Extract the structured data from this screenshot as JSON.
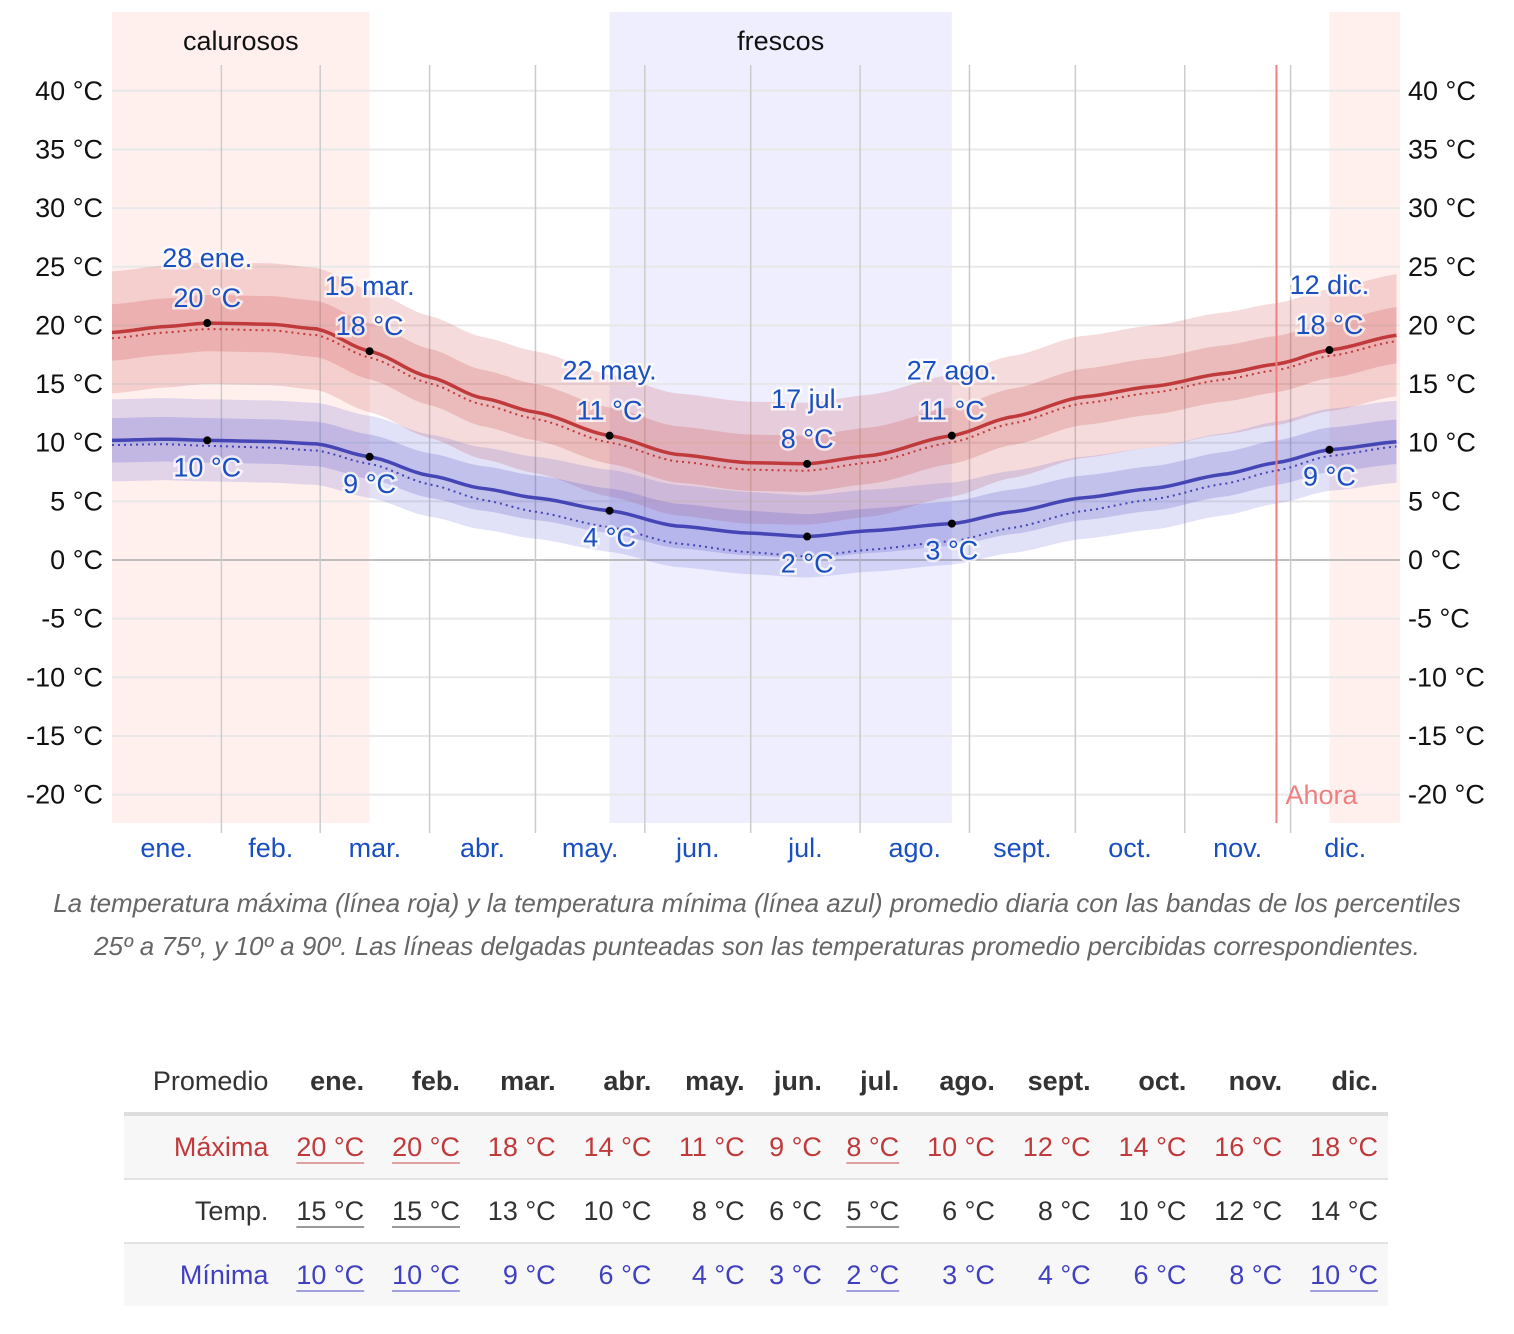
{
  "chart_data": {
    "type": "line",
    "ylim": [
      -22.5,
      45
    ],
    "yticks": [
      40,
      35,
      30,
      25,
      20,
      15,
      10,
      5,
      0,
      -5,
      -10,
      -15,
      -20
    ],
    "ytick_labels": [
      "40 °C",
      "35 °C",
      "30 °C",
      "25 °C",
      "20 °C",
      "15 °C",
      "10 °C",
      "5 °C",
      "0 °C",
      "-5 °C",
      "-10 °C",
      "-15 °C",
      "-20 °C"
    ],
    "months": [
      "ene.",
      "feb.",
      "mar.",
      "abr.",
      "may.",
      "jun.",
      "jul.",
      "ago.",
      "sept.",
      "oct.",
      "nov.",
      "dic."
    ],
    "month_days": [
      31,
      28,
      31,
      30,
      31,
      30,
      31,
      31,
      30,
      31,
      30,
      31
    ],
    "seasons": [
      {
        "label": "calurosos",
        "start_day": 0,
        "end_day": 73,
        "color": "#fff0ee"
      },
      {
        "label": "",
        "start_day": 345,
        "end_day": 365,
        "color": "#fff0ee"
      },
      {
        "label": "frescos",
        "start_day": 141,
        "end_day": 238,
        "color": "#eeeeff"
      }
    ],
    "now": {
      "label": "Ahora",
      "day": 330,
      "color": "#f08080"
    },
    "series": [
      {
        "name": "Máxima",
        "color": "#c0393b",
        "points": [
          [
            0,
            19.4
          ],
          [
            15,
            19.9
          ],
          [
            27,
            20.2
          ],
          [
            45,
            20.1
          ],
          [
            58,
            19.7
          ],
          [
            73,
            17.8
          ],
          [
            90,
            15.6
          ],
          [
            105,
            13.8
          ],
          [
            120,
            12.6
          ],
          [
            141,
            10.6
          ],
          [
            160,
            9
          ],
          [
            180,
            8.3
          ],
          [
            197,
            8.2
          ],
          [
            215,
            8.9
          ],
          [
            238,
            10.6
          ],
          [
            255,
            12.2
          ],
          [
            275,
            13.9
          ],
          [
            295,
            14.8
          ],
          [
            315,
            15.9
          ],
          [
            330,
            16.7
          ],
          [
            345,
            17.9
          ],
          [
            365,
            19.2
          ]
        ],
        "p25_75": 2.4,
        "p10_90": 5.2,
        "feels_offset": [
          [
            0,
            -0.5
          ],
          [
            180,
            -0.6
          ],
          [
            365,
            -0.5
          ]
        ]
      },
      {
        "name": "Mínima",
        "color": "#4545b5",
        "points": [
          [
            0,
            10.2
          ],
          [
            15,
            10.3
          ],
          [
            27,
            10.2
          ],
          [
            45,
            10.1
          ],
          [
            58,
            9.9
          ],
          [
            73,
            8.8
          ],
          [
            90,
            7.2
          ],
          [
            105,
            6.1
          ],
          [
            120,
            5.3
          ],
          [
            141,
            4.2
          ],
          [
            160,
            2.9
          ],
          [
            180,
            2.3
          ],
          [
            197,
            2.0
          ],
          [
            215,
            2.5
          ],
          [
            238,
            3.1
          ],
          [
            255,
            4.1
          ],
          [
            275,
            5.3
          ],
          [
            295,
            6.1
          ],
          [
            315,
            7.3
          ],
          [
            330,
            8.3
          ],
          [
            345,
            9.4
          ],
          [
            365,
            10.1
          ]
        ],
        "p25_75": 1.9,
        "p10_90": 3.5,
        "feels_offset": [
          [
            0,
            -0.4
          ],
          [
            73,
            -0.6
          ],
          [
            141,
            -1.4
          ],
          [
            197,
            -1.7
          ],
          [
            238,
            -1.5
          ],
          [
            300,
            -0.9
          ],
          [
            365,
            -0.4
          ]
        ]
      }
    ],
    "annotations": [
      {
        "day": 27,
        "value": 20.2,
        "date": "28 ene.",
        "temp": "20 °C",
        "pos": "above"
      },
      {
        "day": 73,
        "value": 17.8,
        "date": "15 mar.",
        "temp": "18 °C",
        "pos": "above"
      },
      {
        "day": 141,
        "value": 10.6,
        "date": "22 may.",
        "temp": "11 °C",
        "pos": "above"
      },
      {
        "day": 197,
        "value": 8.2,
        "date": "17 jul.",
        "temp": "8 °C",
        "pos": "above"
      },
      {
        "day": 238,
        "value": 10.6,
        "date": "27 ago.",
        "temp": "11 °C",
        "pos": "above"
      },
      {
        "day": 345,
        "value": 17.9,
        "date": "12 dic.",
        "temp": "18 °C",
        "pos": "above"
      },
      {
        "day": 27,
        "value": 10.2,
        "date": "",
        "temp": "10 °C",
        "pos": "below"
      },
      {
        "day": 73,
        "value": 8.8,
        "date": "",
        "temp": "9 °C",
        "pos": "below"
      },
      {
        "day": 141,
        "value": 4.2,
        "date": "",
        "temp": "4 °C",
        "pos": "below"
      },
      {
        "day": 197,
        "value": 2.0,
        "date": "",
        "temp": "2 °C",
        "pos": "below"
      },
      {
        "day": 238,
        "value": 3.1,
        "date": "",
        "temp": "3 °C",
        "pos": "below"
      },
      {
        "day": 345,
        "value": 9.4,
        "date": "",
        "temp": "9 °C",
        "pos": "below"
      }
    ]
  },
  "caption": "La temperatura máxima (línea roja) y la temperatura mínima (línea azul) promedio diaria con las bandas de los percentiles 25º a 75º, y 10º a 90º. Las líneas delgadas punteadas son las temperaturas promedio percibidas correspondientes.",
  "table": {
    "header": "Promedio",
    "months": [
      "ene.",
      "feb.",
      "mar.",
      "abr.",
      "may.",
      "jun.",
      "jul.",
      "ago.",
      "sept.",
      "oct.",
      "nov.",
      "dic."
    ],
    "rows": [
      {
        "label": "Máxima",
        "cls": "max",
        "values": [
          "20 °C",
          "20 °C",
          "18 °C",
          "14 °C",
          "11 °C",
          "9 °C",
          "8 °C",
          "10 °C",
          "12 °C",
          "14 °C",
          "16 °C",
          "18 °C"
        ],
        "underlined": [
          0,
          1,
          6
        ]
      },
      {
        "label": "Temp.",
        "cls": "tmp",
        "values": [
          "15 °C",
          "15 °C",
          "13 °C",
          "10 °C",
          "8 °C",
          "6 °C",
          "5 °C",
          "6 °C",
          "8 °C",
          "10 °C",
          "12 °C",
          "14 °C"
        ],
        "underlined": [
          0,
          1,
          6
        ]
      },
      {
        "label": "Mínima",
        "cls": "min",
        "values": [
          "10 °C",
          "10 °C",
          "9 °C",
          "6 °C",
          "4 °C",
          "3 °C",
          "2 °C",
          "3 °C",
          "4 °C",
          "6 °C",
          "8 °C",
          "10 °C"
        ],
        "underlined": [
          0,
          1,
          6,
          11
        ]
      }
    ]
  }
}
